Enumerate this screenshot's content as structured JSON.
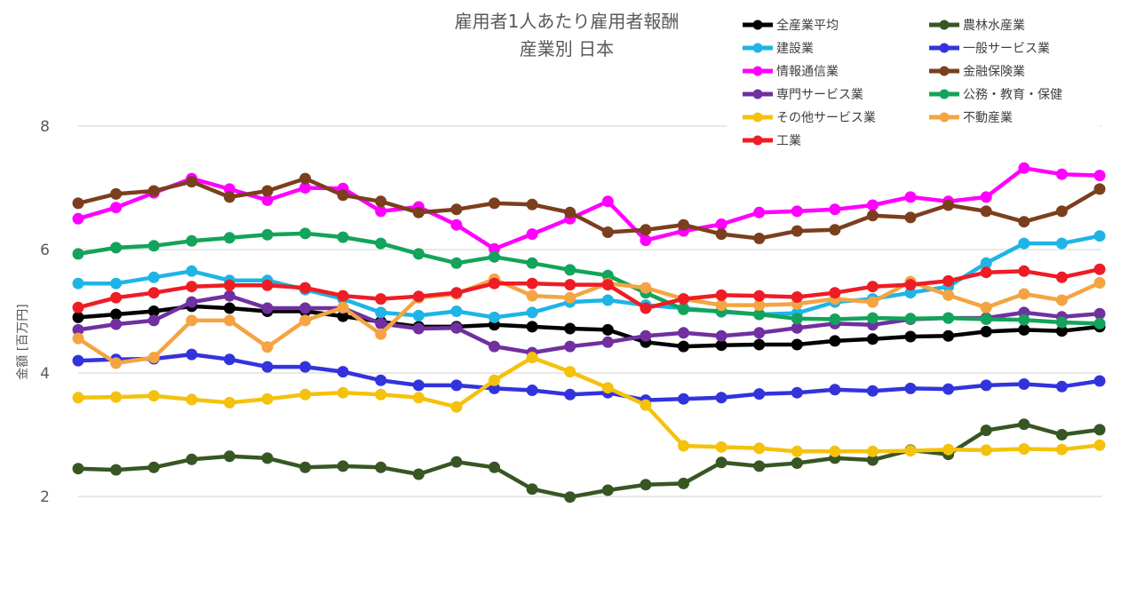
{
  "chart_data": {
    "type": "line",
    "title_lines": [
      "雇用者1人あたり雇用者報酬",
      "産業別 日本"
    ],
    "ylabel": "金額 [百万円]",
    "xlabel": "",
    "ylim": [
      2,
      8
    ],
    "yticks": [
      2,
      4,
      6,
      8
    ],
    "grid": true,
    "legend_position": "top-right",
    "series": [
      {
        "name": "全産業平均",
        "color": "#000000",
        "values": [
          4.9,
          4.95,
          5.0,
          5.08,
          5.05,
          5.0,
          5.0,
          4.92,
          4.83,
          4.75,
          4.75,
          4.78,
          4.75,
          4.72,
          4.7,
          4.5,
          4.43,
          4.45,
          4.46,
          4.46,
          4.52,
          4.55,
          4.59,
          4.6,
          4.67,
          4.7,
          4.68,
          4.75
        ]
      },
      {
        "name": "農林水産業",
        "color": "#375623",
        "values": [
          2.45,
          2.43,
          2.47,
          2.6,
          2.65,
          2.62,
          2.47,
          2.49,
          2.47,
          2.36,
          2.56,
          2.47,
          2.12,
          1.99,
          2.1,
          2.19,
          2.21,
          2.55,
          2.49,
          2.54,
          2.62,
          2.59,
          2.75,
          2.68,
          3.07,
          3.17,
          3.0,
          3.08
        ]
      },
      {
        "name": "建設業",
        "color": "#1EB4E6",
        "values": [
          5.45,
          5.45,
          5.55,
          5.65,
          5.5,
          5.5,
          5.35,
          5.2,
          4.98,
          4.93,
          5.0,
          4.9,
          4.98,
          5.15,
          5.18,
          5.1,
          5.05,
          4.99,
          4.95,
          4.97,
          5.15,
          5.2,
          5.3,
          5.4,
          5.78,
          6.1,
          6.1,
          6.22
        ]
      },
      {
        "name": "一般サービス業",
        "color": "#3333DD",
        "values": [
          4.2,
          4.22,
          4.23,
          4.3,
          4.22,
          4.1,
          4.1,
          4.02,
          3.88,
          3.8,
          3.8,
          3.75,
          3.72,
          3.65,
          3.68,
          3.56,
          3.58,
          3.6,
          3.66,
          3.68,
          3.73,
          3.71,
          3.75,
          3.74,
          3.8,
          3.82,
          3.78,
          3.87
        ]
      },
      {
        "name": "情報通信業",
        "color": "#FF00FF",
        "values": [
          6.5,
          6.68,
          6.92,
          7.15,
          6.98,
          6.8,
          7.0,
          6.99,
          6.62,
          6.69,
          6.4,
          6.01,
          6.25,
          6.5,
          6.78,
          6.15,
          6.3,
          6.41,
          6.6,
          6.62,
          6.65,
          6.72,
          6.85,
          6.78,
          6.85,
          7.32,
          7.22,
          7.2
        ]
      },
      {
        "name": "金融保険業",
        "color": "#7B3F1E",
        "values": [
          6.75,
          6.9,
          6.95,
          7.1,
          6.85,
          6.95,
          7.15,
          6.88,
          6.78,
          6.6,
          6.65,
          6.75,
          6.73,
          6.6,
          6.28,
          6.32,
          6.4,
          6.25,
          6.18,
          6.3,
          6.32,
          6.55,
          6.52,
          6.72,
          6.62,
          6.45,
          6.62,
          6.98
        ]
      },
      {
        "name": "専門サービス業",
        "color": "#7030A0",
        "values": [
          4.7,
          4.79,
          4.85,
          5.15,
          5.25,
          5.05,
          5.05,
          5.05,
          4.8,
          4.72,
          4.73,
          4.43,
          4.33,
          4.43,
          4.5,
          4.6,
          4.65,
          4.6,
          4.65,
          4.73,
          4.8,
          4.78,
          4.87,
          4.89,
          4.89,
          4.98,
          4.91,
          4.96
        ]
      },
      {
        "name": "公務・教育・保健",
        "color": "#12A45A",
        "values": [
          5.93,
          6.03,
          6.06,
          6.14,
          6.19,
          6.24,
          6.26,
          6.2,
          6.1,
          5.93,
          5.78,
          5.88,
          5.78,
          5.67,
          5.58,
          5.3,
          5.03,
          5.0,
          4.95,
          4.88,
          4.87,
          4.89,
          4.88,
          4.89,
          4.87,
          4.86,
          4.82,
          4.8
        ]
      },
      {
        "name": "その他サービス業",
        "color": "#F4C20D",
        "values": [
          3.6,
          3.61,
          3.63,
          3.57,
          3.52,
          3.58,
          3.65,
          3.68,
          3.65,
          3.6,
          3.45,
          3.88,
          4.25,
          4.02,
          3.76,
          3.48,
          2.82,
          2.8,
          2.78,
          2.73,
          2.73,
          2.73,
          2.74,
          2.76,
          2.75,
          2.77,
          2.76,
          2.83
        ]
      },
      {
        "name": "不動産業",
        "color": "#F4A442",
        "values": [
          4.56,
          4.16,
          4.25,
          4.85,
          4.85,
          4.42,
          4.85,
          5.06,
          4.63,
          5.22,
          5.28,
          5.52,
          5.25,
          5.22,
          5.45,
          5.38,
          5.2,
          5.1,
          5.1,
          5.12,
          5.2,
          5.15,
          5.48,
          5.26,
          5.06,
          5.28,
          5.18,
          5.46
        ]
      },
      {
        "name": "工業",
        "color": "#EE1C25",
        "values": [
          5.06,
          5.22,
          5.3,
          5.4,
          5.42,
          5.42,
          5.38,
          5.25,
          5.2,
          5.24,
          5.3,
          5.45,
          5.45,
          5.43,
          5.43,
          5.05,
          5.2,
          5.26,
          5.25,
          5.23,
          5.3,
          5.4,
          5.43,
          5.49,
          5.63,
          5.65,
          5.55,
          5.68
        ]
      }
    ]
  }
}
